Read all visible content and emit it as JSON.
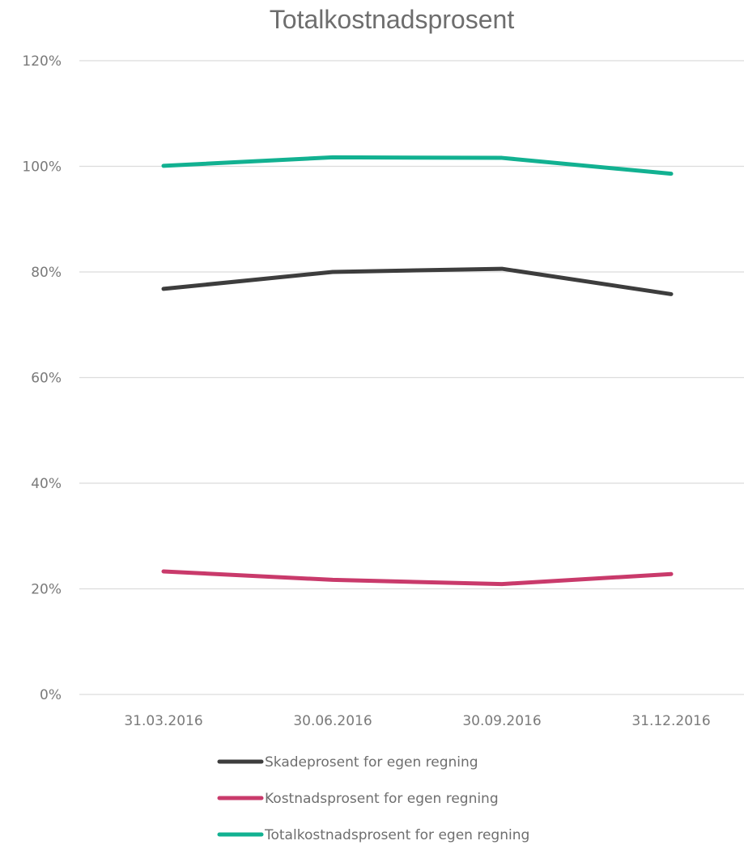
{
  "chart_data": {
    "type": "line",
    "title": "Totalkostnadsprosent",
    "xlabel": "",
    "ylabel": "",
    "categories": [
      "31.03.2016",
      "30.06.2016",
      "30.09.2016",
      "31.12.2016"
    ],
    "y_ticks": [
      "0%",
      "20%",
      "40%",
      "60%",
      "80%",
      "100%",
      "120%"
    ],
    "ylim": [
      0,
      120
    ],
    "grid": true,
    "legend_position": "bottom",
    "series": [
      {
        "name": "Skadeprosent for egen regning",
        "color": "#3d3d3d",
        "values": [
          76.8,
          80.0,
          80.6,
          75.8
        ]
      },
      {
        "name": "Kostnadsprosent for egen regning",
        "color": "#c93a6b",
        "values": [
          23.3,
          21.7,
          20.9,
          22.8
        ]
      },
      {
        "name": "Totalkostnadsprosent for egen regning",
        "color": "#12b191",
        "values": [
          100.1,
          101.7,
          101.6,
          98.6
        ]
      }
    ]
  }
}
